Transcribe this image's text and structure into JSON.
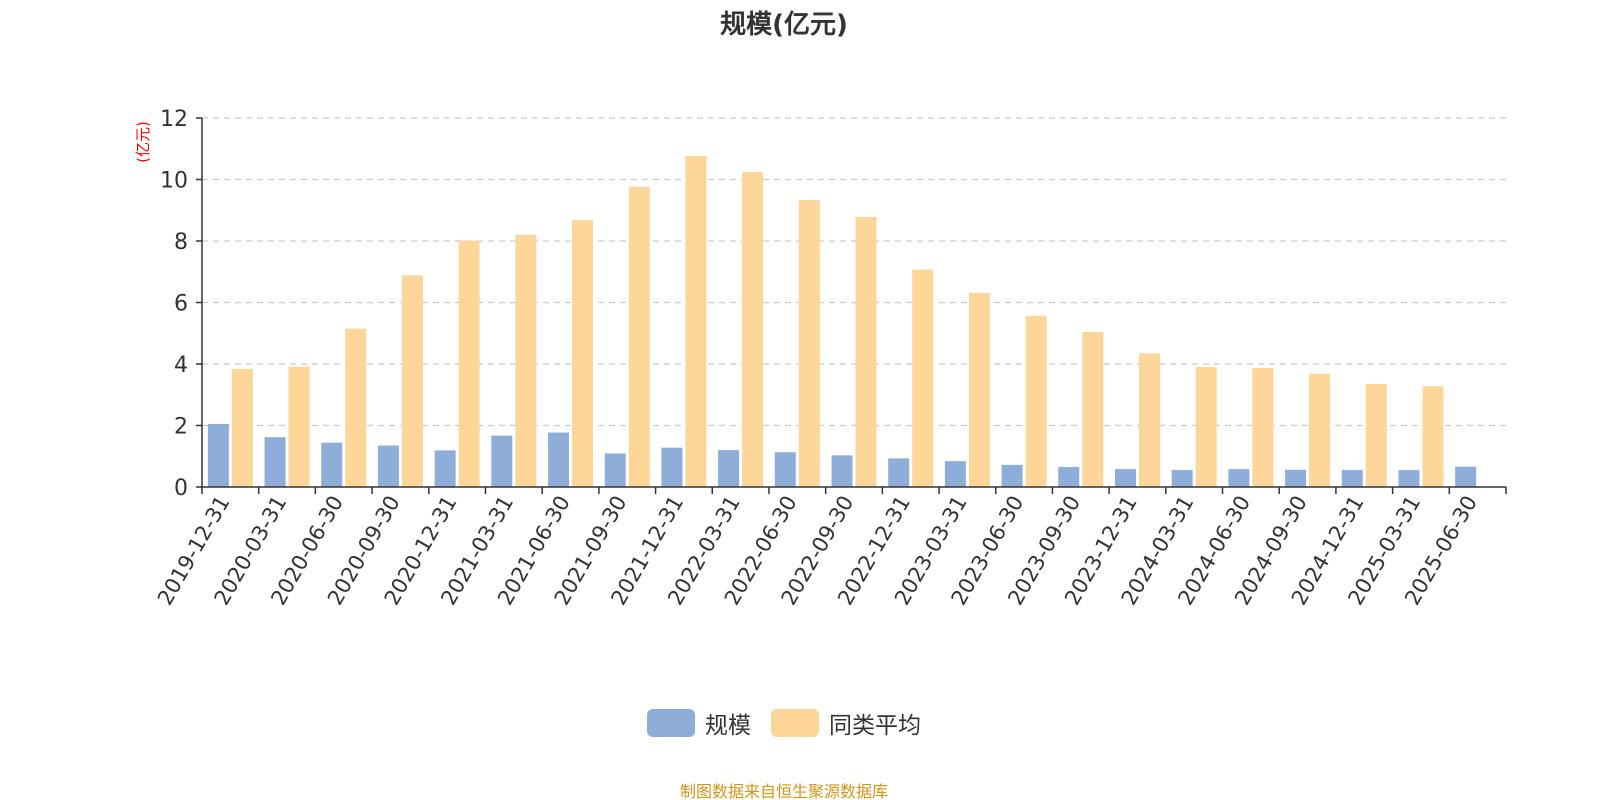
{
  "title": "规模(亿元)",
  "source_note": "制图数据来自恒生聚源数据库",
  "colors": {
    "series_1": "#8eadd9",
    "series_2": "#fed699",
    "axis": "#333333",
    "grid": "#cccccc",
    "unit_label": "#ff0000",
    "source_note": "#d0961e"
  },
  "chart_data": {
    "type": "bar",
    "title": "规模(亿元)",
    "xlabel": "",
    "ylabel": "(亿元)",
    "ylim": [
      0,
      12
    ],
    "yticks": [
      0,
      2,
      4,
      6,
      8,
      10,
      12
    ],
    "grid": true,
    "legend_position": "bottom-center",
    "categories": [
      "2019-12-31",
      "2020-03-31",
      "2020-06-30",
      "2020-09-30",
      "2020-12-31",
      "2021-03-31",
      "2021-06-30",
      "2021-09-30",
      "2021-12-31",
      "2022-03-31",
      "2022-06-30",
      "2022-09-30",
      "2022-12-31",
      "2023-03-31",
      "2023-06-30",
      "2023-09-30",
      "2023-12-31",
      "2024-03-31",
      "2024-06-30",
      "2024-09-30",
      "2024-12-31",
      "2025-03-31",
      "2025-06-30"
    ],
    "series": [
      {
        "name": "规模",
        "values": [
          2.05,
          1.62,
          1.44,
          1.35,
          1.19,
          1.67,
          1.77,
          1.09,
          1.28,
          1.2,
          1.13,
          1.03,
          0.93,
          0.84,
          0.72,
          0.65,
          0.58,
          0.55,
          0.58,
          0.56,
          0.55,
          0.55,
          0.66
        ]
      },
      {
        "name": "同类平均",
        "values": [
          3.84,
          3.91,
          5.15,
          6.88,
          8.01,
          8.2,
          8.68,
          9.76,
          10.77,
          10.24,
          9.33,
          8.78,
          7.07,
          6.31,
          5.57,
          5.04,
          4.35,
          3.9,
          3.87,
          3.68,
          3.35,
          3.28,
          null
        ]
      }
    ]
  }
}
